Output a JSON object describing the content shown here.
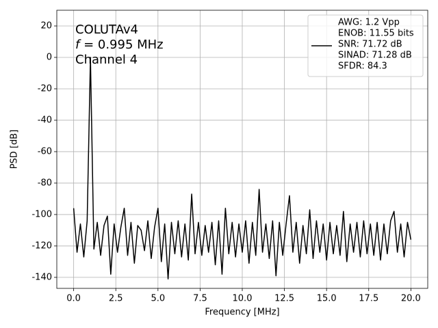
{
  "chart_data": {
    "type": "line",
    "annotation_lines": [
      [
        "COLUTAv4"
      ],
      [
        "f",
        " = 0.995 MHz"
      ],
      [
        "Channel 4"
      ]
    ],
    "x_label": "Frequency [MHz]",
    "y_label": "PSD [dB]",
    "legend": {
      "loc": "upper right",
      "lines": [
        "AWG: 1.2 Vpp",
        "ENOB: 11.55 bits",
        "SNR: 71.72 dB",
        "SINAD: 71.28 dB",
        "SFDR: 84.3"
      ]
    },
    "x": [
      0,
      0.2,
      0.4,
      0.6,
      0.8,
      0.995,
      1.2,
      1.4,
      1.6,
      1.8,
      2,
      2.2,
      2.4,
      2.6,
      2.8,
      3,
      3.2,
      3.4,
      3.6,
      3.8,
      4,
      4.2,
      4.4,
      4.6,
      4.8,
      5,
      5.2,
      5.4,
      5.6,
      5.8,
      6,
      6.2,
      6.4,
      6.6,
      6.8,
      7,
      7.2,
      7.4,
      7.6,
      7.8,
      8,
      8.2,
      8.4,
      8.6,
      8.8,
      9,
      9.2,
      9.4,
      9.6,
      9.8,
      10,
      10.2,
      10.4,
      10.6,
      10.8,
      11,
      11.2,
      11.4,
      11.6,
      11.8,
      12,
      12.2,
      12.4,
      12.6,
      12.8,
      13,
      13.2,
      13.4,
      13.6,
      13.8,
      14,
      14.2,
      14.4,
      14.6,
      14.8,
      15,
      15.2,
      15.4,
      15.6,
      15.8,
      16,
      16.2,
      16.4,
      16.6,
      16.8,
      17,
      17.2,
      17.4,
      17.6,
      17.8,
      18,
      18.2,
      18.4,
      18.6,
      18.8,
      19,
      19.2,
      19.4,
      19.6,
      19.8,
      20
    ],
    "series": [
      {
        "color": "#000000",
        "values": [
          -96,
          -124,
          -106,
          -127,
          -104,
          0,
          -122,
          -105,
          -126,
          -107,
          -101,
          -138,
          -106,
          -124,
          -108,
          -96,
          -126,
          -105,
          -131,
          -107,
          -110,
          -123,
          -104,
          -128,
          -108,
          -96,
          -130,
          -106,
          -141,
          -105,
          -125,
          -104,
          -127,
          -106,
          -129,
          -87,
          -125,
          -105,
          -126,
          -107,
          -124,
          -105,
          -132,
          -104,
          -138,
          -96,
          -125,
          -105,
          -127,
          -106,
          -124,
          -104,
          -131,
          -105,
          -126,
          -84,
          -124,
          -106,
          -128,
          -104,
          -139,
          -105,
          -126,
          -106,
          -88,
          -124,
          -105,
          -131,
          -107,
          -125,
          -97,
          -128,
          -104,
          -124,
          -106,
          -129,
          -105,
          -125,
          -107,
          -126,
          -98,
          -130,
          -106,
          -124,
          -105,
          -127,
          -104,
          -125,
          -106,
          -126,
          -105,
          -129,
          -106,
          -125,
          -104,
          -98,
          -124,
          -106,
          -127,
          -105,
          -116
        ]
      }
    ],
    "xlim": [
      -1,
      21
    ],
    "ylim": [
      -147,
      30
    ],
    "xticks": [
      {
        "value": 0,
        "label": "0.0"
      },
      {
        "value": 2.5,
        "label": "2.5"
      },
      {
        "value": 5,
        "label": "5.0"
      },
      {
        "value": 7.5,
        "label": "7.5"
      },
      {
        "value": 10,
        "label": "10.0"
      },
      {
        "value": 12.5,
        "label": "12.5"
      },
      {
        "value": 15,
        "label": "15.0"
      },
      {
        "value": 17.5,
        "label": "17.5"
      },
      {
        "value": 20,
        "label": "20.0"
      }
    ],
    "yticks": [
      -140,
      -120,
      -100,
      -80,
      -60,
      -40,
      -20,
      0,
      20
    ],
    "grid": true
  }
}
